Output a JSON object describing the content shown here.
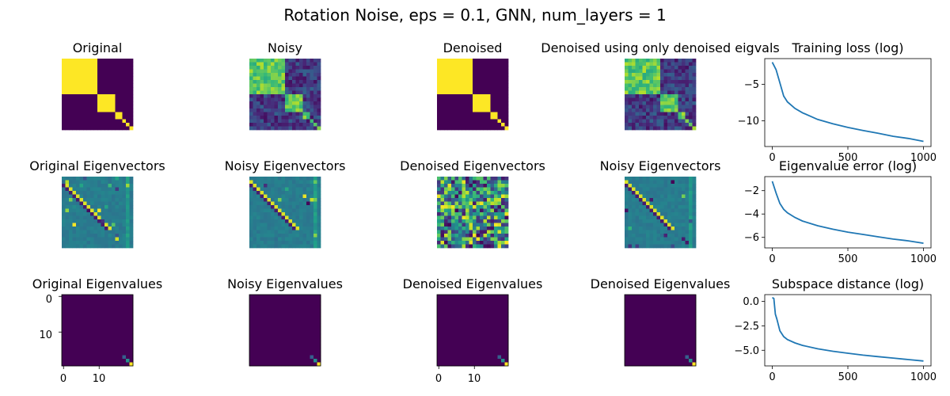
{
  "figure_title": "Rotation Noise, eps = 0.1, GNN, num_layers = 1",
  "panels": {
    "row1": [
      {
        "title": "Original"
      },
      {
        "title": "Noisy"
      },
      {
        "title": "Denoised"
      },
      {
        "title": "Denoised using only denoised eigvals"
      }
    ],
    "row2": [
      {
        "title": "Original Eigenvectors"
      },
      {
        "title": "Noisy Eigenvectors"
      },
      {
        "title": "Denoised Eigenvectors"
      },
      {
        "title": "Noisy Eigenvectors"
      }
    ],
    "row3": [
      {
        "title": "Original Eigenvalues",
        "yticks": [
          "0",
          "10"
        ],
        "xticks": [
          "0",
          "10"
        ]
      },
      {
        "title": "Noisy Eigenvalues"
      },
      {
        "title": "Denoised Eigenvalues",
        "xticks": [
          "0",
          "10"
        ]
      },
      {
        "title": "Denoised Eigenvalues"
      }
    ]
  },
  "colors": {
    "viridis_dark": "#440154",
    "viridis_yellow": "#fde725",
    "line_blue": "#1f77b4"
  },
  "chart_data": [
    {
      "type": "line",
      "title": "Training loss (log)",
      "x": [
        0,
        25,
        50,
        75,
        100,
        150,
        200,
        300,
        400,
        500,
        600,
        700,
        800,
        900,
        1000
      ],
      "series": [
        {
          "values": [
            -2.0,
            -3.0,
            -4.8,
            -6.6,
            -7.4,
            -8.3,
            -8.9,
            -9.8,
            -10.4,
            -10.9,
            -11.3,
            -11.7,
            -12.1,
            -12.4,
            -12.8
          ]
        }
      ],
      "xticks": [
        0,
        500,
        1000
      ],
      "yticks": [
        -5,
        -10
      ],
      "xlim": [
        -50,
        1050
      ],
      "ylim": [
        -13.5,
        -1.5
      ]
    },
    {
      "type": "line",
      "title": "Eigenvalue error (log)",
      "x": [
        0,
        25,
        50,
        75,
        100,
        150,
        200,
        300,
        400,
        500,
        600,
        700,
        800,
        900,
        1000
      ],
      "series": [
        {
          "values": [
            -1.2,
            -2.2,
            -3.1,
            -3.6,
            -3.9,
            -4.3,
            -4.6,
            -5.0,
            -5.3,
            -5.55,
            -5.75,
            -5.95,
            -6.15,
            -6.3,
            -6.5
          ]
        }
      ],
      "xticks": [
        0,
        500,
        1000
      ],
      "yticks": [
        -2,
        -4,
        -6
      ],
      "xlim": [
        -50,
        1050
      ],
      "ylim": [
        -6.9,
        -0.8
      ]
    },
    {
      "type": "line",
      "title": "Subspace distance (log)",
      "x": [
        0,
        10,
        20,
        30,
        40,
        50,
        75,
        100,
        150,
        200,
        300,
        400,
        500,
        600,
        700,
        800,
        900,
        1000
      ],
      "series": [
        {
          "values": [
            0.4,
            0.3,
            -1.3,
            -1.8,
            -2.4,
            -3.0,
            -3.6,
            -3.9,
            -4.25,
            -4.5,
            -4.85,
            -5.1,
            -5.3,
            -5.5,
            -5.65,
            -5.8,
            -5.95,
            -6.1
          ]
        }
      ],
      "xticks": [
        0,
        500,
        1000
      ],
      "yticks": [
        0.0,
        -2.5,
        -5.0
      ],
      "xlim": [
        -50,
        1050
      ],
      "ylim": [
        -6.6,
        0.7
      ]
    }
  ]
}
